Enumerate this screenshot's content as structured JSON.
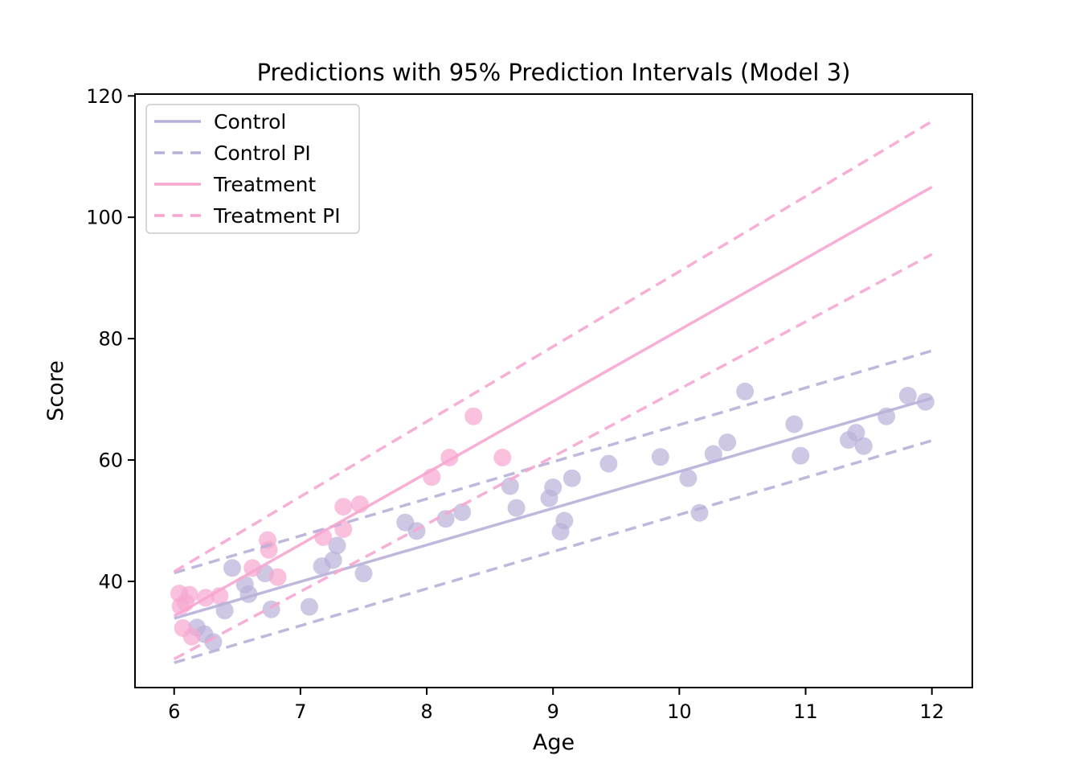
{
  "chart_data": {
    "type": "scatter",
    "title": "Predictions with 95% Prediction Intervals (Model 3)",
    "xlabel": "Age",
    "ylabel": "Score",
    "xlim": [
      5.69,
      12.32
    ],
    "ylim": [
      22.5,
      120.3
    ],
    "xticks": [
      6,
      7,
      8,
      9,
      10,
      11,
      12
    ],
    "yticks": [
      40,
      60,
      80,
      100,
      120
    ],
    "grid": false,
    "legend_position": "upper left",
    "colors": {
      "control": "#b9b0d8",
      "treatment": "#f7a6d0",
      "axis": "#000000",
      "legend_border": "#cccccc",
      "background": "#ffffff"
    },
    "legend": [
      {
        "label": "Control",
        "color_key": "control",
        "line_style": "solid"
      },
      {
        "label": "Control PI",
        "color_key": "control",
        "line_style": "dashed"
      },
      {
        "label": "Treatment",
        "color_key": "treatment",
        "line_style": "solid"
      },
      {
        "label": "Treatment PI",
        "color_key": "treatment",
        "line_style": "dashed"
      }
    ],
    "series": [
      {
        "name": "Control observations",
        "kind": "scatter",
        "color_key": "control",
        "points": [
          [
            6.18,
            32.4
          ],
          [
            6.24,
            31.3
          ],
          [
            6.31,
            30.0
          ],
          [
            6.4,
            35.2
          ],
          [
            6.46,
            42.2
          ],
          [
            6.56,
            39.5
          ],
          [
            6.59,
            37.9
          ],
          [
            6.72,
            41.3
          ],
          [
            6.77,
            35.4
          ],
          [
            7.07,
            35.8
          ],
          [
            7.17,
            42.5
          ],
          [
            7.26,
            43.5
          ],
          [
            7.29,
            45.9
          ],
          [
            7.5,
            41.3
          ],
          [
            7.83,
            49.7
          ],
          [
            7.92,
            48.3
          ],
          [
            8.15,
            50.3
          ],
          [
            8.28,
            51.4
          ],
          [
            8.66,
            55.7
          ],
          [
            8.71,
            52.1
          ],
          [
            8.97,
            53.7
          ],
          [
            9.0,
            55.5
          ],
          [
            9.06,
            48.2
          ],
          [
            9.09,
            50.0
          ],
          [
            9.15,
            57.0
          ],
          [
            9.44,
            59.4
          ],
          [
            9.85,
            60.5
          ],
          [
            10.07,
            57.0
          ],
          [
            10.16,
            51.3
          ],
          [
            10.27,
            61.0
          ],
          [
            10.38,
            62.9
          ],
          [
            10.52,
            71.3
          ],
          [
            10.91,
            65.9
          ],
          [
            10.96,
            60.7
          ],
          [
            11.34,
            63.3
          ],
          [
            11.4,
            64.5
          ],
          [
            11.46,
            62.3
          ],
          [
            11.64,
            67.2
          ],
          [
            11.81,
            70.6
          ],
          [
            11.95,
            69.6
          ]
        ]
      },
      {
        "name": "Treatment observations",
        "kind": "scatter",
        "color_key": "treatment",
        "points": [
          [
            6.04,
            38.0
          ],
          [
            6.05,
            35.9
          ],
          [
            6.07,
            32.3
          ],
          [
            6.09,
            36.5
          ],
          [
            6.12,
            37.8
          ],
          [
            6.14,
            30.9
          ],
          [
            6.25,
            37.3
          ],
          [
            6.36,
            37.6
          ],
          [
            6.62,
            42.2
          ],
          [
            6.74,
            46.8
          ],
          [
            6.75,
            45.2
          ],
          [
            6.82,
            40.7
          ],
          [
            7.18,
            47.3
          ],
          [
            7.34,
            48.6
          ],
          [
            7.34,
            52.3
          ],
          [
            7.47,
            52.7
          ],
          [
            8.04,
            57.2
          ],
          [
            8.18,
            60.4
          ],
          [
            8.37,
            67.2
          ],
          [
            8.6,
            60.4
          ]
        ]
      },
      {
        "name": "Control",
        "kind": "line",
        "style": "solid",
        "color_key": "control",
        "x": [
          6.0,
          12.0
        ],
        "y": [
          33.9,
          70.2
        ]
      },
      {
        "name": "Control PI upper",
        "kind": "line",
        "style": "dashed",
        "color_key": "control",
        "x": [
          6.0,
          12.0
        ],
        "y": [
          41.4,
          78.0
        ]
      },
      {
        "name": "Control PI lower",
        "kind": "line",
        "style": "dashed",
        "color_key": "control",
        "x": [
          6.0,
          12.0
        ],
        "y": [
          26.6,
          63.2
        ]
      },
      {
        "name": "Treatment",
        "kind": "line",
        "style": "solid",
        "color_key": "treatment",
        "x": [
          6.0,
          12.0
        ],
        "y": [
          34.3,
          105.0
        ]
      },
      {
        "name": "Treatment PI upper",
        "kind": "line",
        "style": "dashed",
        "color_key": "treatment",
        "x": [
          6.0,
          12.0
        ],
        "y": [
          41.6,
          115.8
        ]
      },
      {
        "name": "Treatment PI lower",
        "kind": "line",
        "style": "dashed",
        "color_key": "treatment",
        "x": [
          6.0,
          12.0
        ],
        "y": [
          27.2,
          93.9
        ]
      }
    ]
  }
}
